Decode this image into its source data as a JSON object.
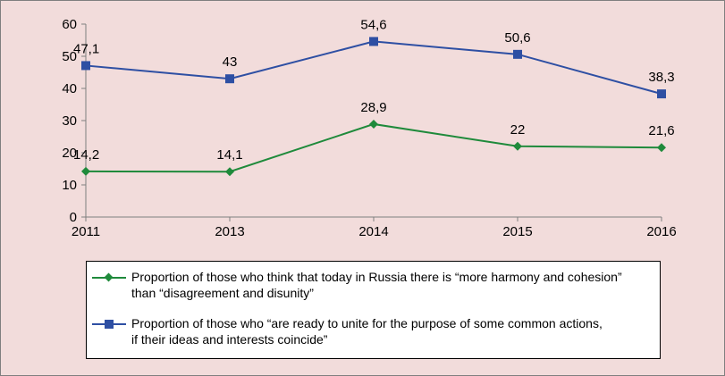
{
  "colors": {
    "background": "#f2dcdb",
    "series_harmony": "#1f8a3b",
    "series_unite": "#2e4fa3",
    "axis": "#7f7f7f"
  },
  "chart_data": {
    "type": "line",
    "title": "",
    "xlabel": "",
    "ylabel": "",
    "categories": [
      "2011",
      "2013",
      "2014",
      "2015",
      "2016"
    ],
    "ylim": [
      0,
      60
    ],
    "yticks": [
      0,
      10,
      20,
      30,
      40,
      50,
      60
    ],
    "grid": false,
    "legend_position": "bottom",
    "series": [
      {
        "name": "Proportion of those who think that today in Russia there is “more harmony and cohesion” than “disagreement and disunity”",
        "marker": "diamond",
        "color": "#1f8a3b",
        "values": [
          14.2,
          14.1,
          28.9,
          22,
          21.6
        ],
        "labels": [
          "14,2",
          "14,1",
          "28,9",
          "22",
          "21,6"
        ]
      },
      {
        "name": "Proportion of those who “are ready to unite for the purpose of some common actions, if their ideas and interests coincide”",
        "marker": "square",
        "color": "#2e4fa3",
        "values": [
          47.1,
          43,
          54.6,
          50.6,
          38.3
        ],
        "labels": [
          "47,1",
          "43",
          "54,6",
          "50,6",
          "38,3"
        ]
      }
    ]
  },
  "legend": {
    "items": [
      {
        "line1": "Proportion of those who think that today in Russia there is “more harmony and cohesion”",
        "line2": "than “disagreement and disunity”"
      },
      {
        "line1": "Proportion of those who “are ready to unite for the purpose of some common actions,",
        "line2": "if their ideas and interests coincide”"
      }
    ]
  }
}
